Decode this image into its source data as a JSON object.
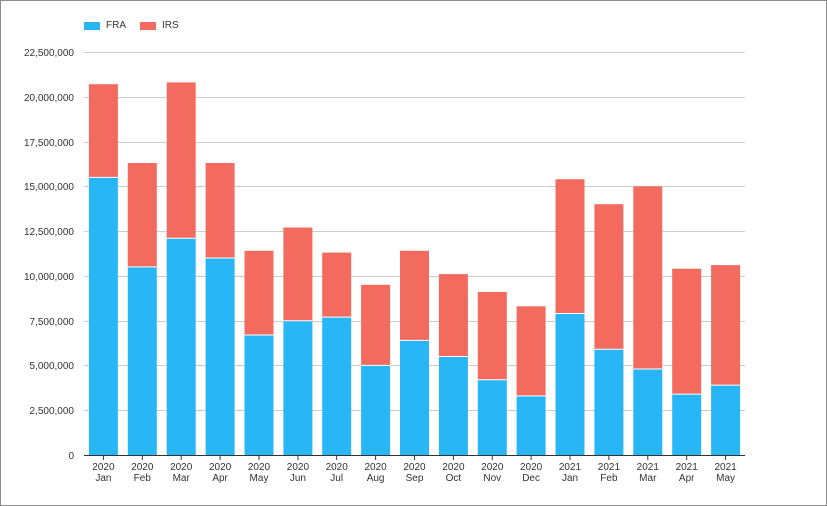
{
  "chart_data": {
    "type": "bar",
    "stacked": true,
    "categories": [
      [
        "2020",
        "Jan"
      ],
      [
        "2020",
        "Feb"
      ],
      [
        "2020",
        "Mar"
      ],
      [
        "2020",
        "Apr"
      ],
      [
        "2020",
        "May"
      ],
      [
        "2020",
        "Jun"
      ],
      [
        "2020",
        "Jul"
      ],
      [
        "2020",
        "Aug"
      ],
      [
        "2020",
        "Sep"
      ],
      [
        "2020",
        "Oct"
      ],
      [
        "2020",
        "Nov"
      ],
      [
        "2020",
        "Dec"
      ],
      [
        "2021",
        "Jan"
      ],
      [
        "2021",
        "Feb"
      ],
      [
        "2021",
        "Mar"
      ],
      [
        "2021",
        "Apr"
      ],
      [
        "2021",
        "May"
      ]
    ],
    "series": [
      {
        "name": "FRA",
        "color": "#29b6f6",
        "values": [
          15500000,
          10500000,
          12100000,
          11000000,
          6700000,
          7500000,
          7700000,
          5000000,
          6400000,
          5500000,
          4200000,
          3300000,
          7900000,
          5900000,
          4800000,
          3400000,
          3900000
        ]
      },
      {
        "name": "IRS",
        "color": "#f26b5e",
        "values": [
          5200000,
          5800000,
          8700000,
          5300000,
          4700000,
          5200000,
          3600000,
          4500000,
          5000000,
          4600000,
          4900000,
          5000000,
          7500000,
          8100000,
          10200000,
          7000000,
          6700000
        ]
      }
    ],
    "ylim": [
      0,
      22500000
    ],
    "yticks": [
      "0",
      "2,500,000",
      "5,000,000",
      "7,500,000",
      "10,000,000",
      "12,500,000",
      "15,000,000",
      "17,500,000",
      "20,000,000",
      "22,500,000"
    ],
    "ytick_values": [
      0,
      2500000,
      5000000,
      7500000,
      10000000,
      12500000,
      15000000,
      17500000,
      20000000,
      22500000
    ],
    "grid": true,
    "legend_position": "top-left",
    "gridline_color": "#cccccc",
    "axis_color": "#333333"
  }
}
